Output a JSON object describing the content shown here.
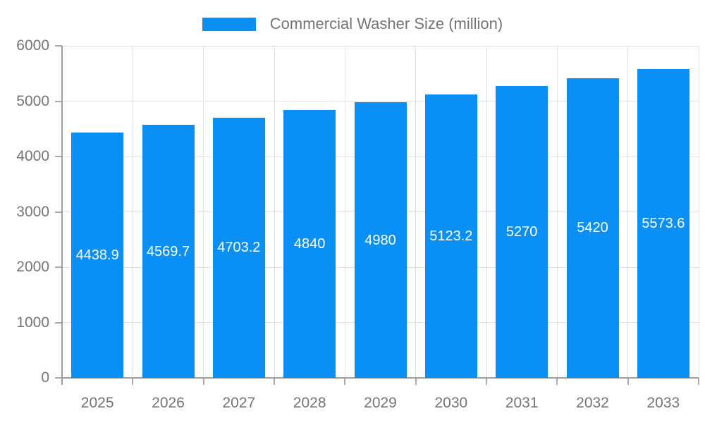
{
  "chart_data": {
    "type": "bar",
    "title": "Commercial Washer Size (million)",
    "legend": [
      "Commercial Washer Size (million)"
    ],
    "legend_position": "top",
    "categories": [
      "2025",
      "2026",
      "2027",
      "2028",
      "2029",
      "2030",
      "2031",
      "2032",
      "2033"
    ],
    "values": [
      4438.9,
      4569.7,
      4703.2,
      4840,
      4980,
      5123.2,
      5270,
      5420,
      5573.6
    ],
    "value_labels": [
      "4438.9",
      "4569.7",
      "4703.2",
      "4840",
      "4980",
      "5123.2",
      "5270",
      "5420",
      "5573.6"
    ],
    "xlabel": "",
    "ylabel": "",
    "ylim": [
      0,
      6000
    ],
    "yticks": [
      0,
      1000,
      2000,
      3000,
      4000,
      5000,
      6000
    ],
    "grid": true,
    "colors": {
      "bar": "#0a8ff4",
      "grid": "#e2e2e2",
      "axis_line": "#9e9e9e",
      "tick": "#ababab",
      "axis_text": "#757575",
      "value_label": "#ffffff",
      "background": "#ffffff"
    }
  }
}
